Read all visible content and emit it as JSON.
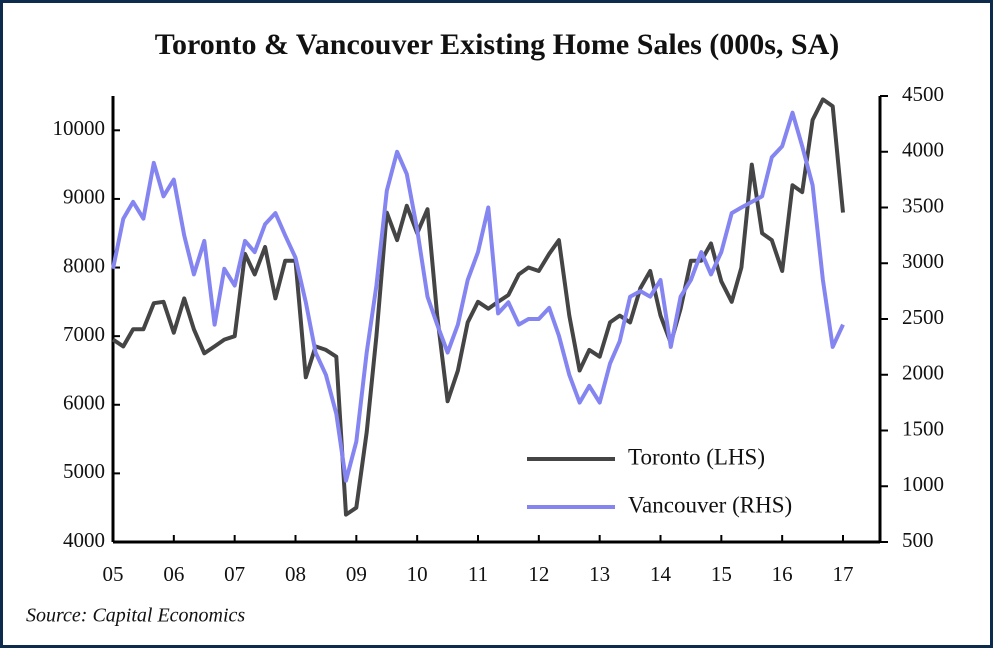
{
  "chart_data": {
    "type": "line",
    "title": "Toronto & Vancouver Existing Home Sales (000s, SA)",
    "source": "Source: Capital Economics",
    "x": [
      2005,
      2005.17,
      2005.33,
      2005.5,
      2005.67,
      2005.83,
      2006,
      2006.17,
      2006.33,
      2006.5,
      2006.67,
      2006.83,
      2007,
      2007.17,
      2007.33,
      2007.5,
      2007.67,
      2007.83,
      2008,
      2008.17,
      2008.33,
      2008.5,
      2008.67,
      2008.83,
      2009,
      2009.17,
      2009.33,
      2009.5,
      2009.67,
      2009.83,
      2010,
      2010.17,
      2010.33,
      2010.5,
      2010.67,
      2010.83,
      2011,
      2011.17,
      2011.33,
      2011.5,
      2011.67,
      2011.83,
      2012,
      2012.17,
      2012.33,
      2012.5,
      2012.67,
      2012.83,
      2013,
      2013.17,
      2013.33,
      2013.5,
      2013.67,
      2013.83,
      2014,
      2014.17,
      2014.33,
      2014.5,
      2014.67,
      2014.83,
      2015,
      2015.17,
      2015.33,
      2015.5,
      2015.67,
      2015.83,
      2016,
      2016.17,
      2016.33,
      2016.5,
      2016.67,
      2016.83,
      2017
    ],
    "series": [
      {
        "name": "Toronto (LHS)",
        "color": "#454545",
        "axis": "y",
        "values": [
          6950,
          6850,
          7100,
          7100,
          7480,
          7500,
          7050,
          7550,
          7100,
          6750,
          6850,
          6950,
          7000,
          8200,
          7900,
          8300,
          7550,
          8100,
          8100,
          6400,
          6850,
          6800,
          6700,
          4400,
          4500,
          5600,
          7000,
          8800,
          8400,
          8900,
          8500,
          8850,
          7300,
          6050,
          6500,
          7200,
          7500,
          7400,
          7500,
          7600,
          7900,
          8000,
          7950,
          8200,
          8400,
          7300,
          6500,
          6800,
          6700,
          7200,
          7300,
          7200,
          7700,
          7950,
          7300,
          6900,
          7400,
          8100,
          8100,
          8350,
          7800,
          7500,
          8000,
          9500,
          8500,
          8400,
          7950,
          9200,
          9100,
          10150,
          10450,
          10350,
          8800
        ]
      },
      {
        "name": "Vancouver (RHS)",
        "color": "#8585f2",
        "axis": "y2",
        "values": [
          2950,
          3400,
          3550,
          3400,
          3900,
          3600,
          3750,
          3250,
          2900,
          3200,
          2450,
          2950,
          2800,
          3200,
          3100,
          3350,
          3450,
          3250,
          3050,
          2650,
          2200,
          2000,
          1650,
          1050,
          1400,
          2200,
          2800,
          3650,
          4000,
          3800,
          3300,
          2700,
          2450,
          2200,
          2450,
          2850,
          3100,
          3500,
          2550,
          2650,
          2450,
          2500,
          2500,
          2600,
          2350,
          2000,
          1750,
          1900,
          1750,
          2100,
          2300,
          2700,
          2750,
          2700,
          2850,
          2250,
          2700,
          2850,
          3100,
          2900,
          3100,
          3450,
          3500,
          3550,
          3600,
          3950,
          4050,
          4350,
          4050,
          3700,
          2850,
          2250,
          2450
        ]
      }
    ],
    "xlim": [
      2005,
      2017
    ],
    "xticks": [
      {
        "value": 2005,
        "label": "05"
      },
      {
        "value": 2006,
        "label": "06"
      },
      {
        "value": 2007,
        "label": "07"
      },
      {
        "value": 2008,
        "label": "08"
      },
      {
        "value": 2009,
        "label": "09"
      },
      {
        "value": 2010,
        "label": "10"
      },
      {
        "value": 2011,
        "label": "11"
      },
      {
        "value": 2012,
        "label": "12"
      },
      {
        "value": 2013,
        "label": "13"
      },
      {
        "value": 2014,
        "label": "14"
      },
      {
        "value": 2015,
        "label": "15"
      },
      {
        "value": 2016,
        "label": "16"
      },
      {
        "value": 2017,
        "label": "17"
      }
    ],
    "ylim": [
      4000,
      10500
    ],
    "yticks": [
      4000,
      5000,
      6000,
      7000,
      8000,
      9000,
      10000
    ],
    "y2lim": [
      500,
      4500
    ],
    "y2ticks": [
      500,
      1000,
      1500,
      2000,
      2500,
      3000,
      3500,
      4000,
      4500
    ],
    "legend": "lower right"
  }
}
